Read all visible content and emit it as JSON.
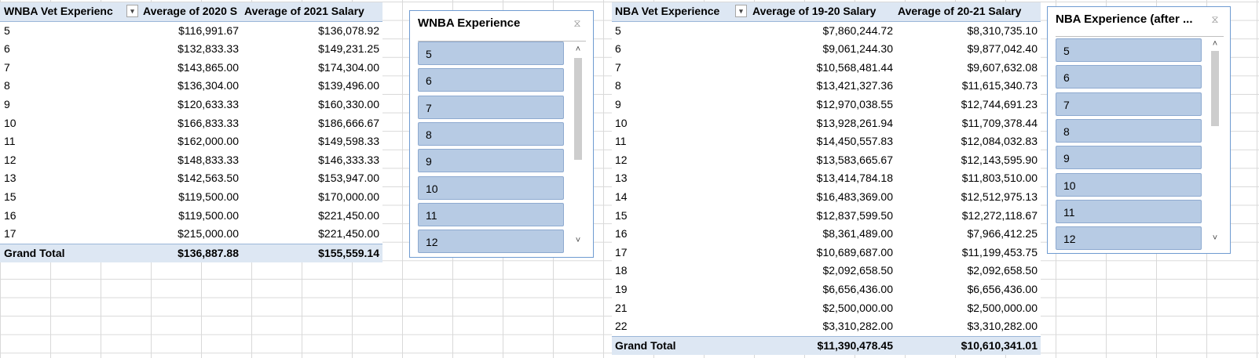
{
  "wnba": {
    "headers": [
      "WNBA Vet Experienc",
      "Average of 2020 S",
      "Average of 2021 Salary"
    ],
    "rows": [
      [
        "5",
        "$116,991.67",
        "$136,078.92"
      ],
      [
        "6",
        "$132,833.33",
        "$149,231.25"
      ],
      [
        "7",
        "$143,865.00",
        "$174,304.00"
      ],
      [
        "8",
        "$136,304.00",
        "$139,496.00"
      ],
      [
        "9",
        "$120,633.33",
        "$160,330.00"
      ],
      [
        "10",
        "$166,833.33",
        "$186,666.67"
      ],
      [
        "11",
        "$162,000.00",
        "$149,598.33"
      ],
      [
        "12",
        "$148,833.33",
        "$146,333.33"
      ],
      [
        "13",
        "$142,563.50",
        "$153,947.00"
      ],
      [
        "15",
        "$119,500.00",
        "$170,000.00"
      ],
      [
        "16",
        "$119,500.00",
        "$221,450.00"
      ],
      [
        "17",
        "$215,000.00",
        "$221,450.00"
      ]
    ],
    "total": [
      "Grand Total",
      "$136,887.88",
      "$155,559.14"
    ]
  },
  "wnba_slicer": {
    "title": "WNBA Experience",
    "items": [
      "5",
      "6",
      "7",
      "8",
      "9",
      "10",
      "11",
      "12"
    ]
  },
  "nba": {
    "headers": [
      "NBA Vet Experience",
      "Average of 19-20 Salary",
      "Average of 20-21 Salary"
    ],
    "rows": [
      [
        "5",
        "$7,860,244.72",
        "$8,310,735.10"
      ],
      [
        "6",
        "$9,061,244.30",
        "$9,877,042.40"
      ],
      [
        "7",
        "$10,568,481.44",
        "$9,607,632.08"
      ],
      [
        "8",
        "$13,421,327.36",
        "$11,615,340.73"
      ],
      [
        "9",
        "$12,970,038.55",
        "$12,744,691.23"
      ],
      [
        "10",
        "$13,928,261.94",
        "$11,709,378.44"
      ],
      [
        "11",
        "$14,450,557.83",
        "$12,084,032.83"
      ],
      [
        "12",
        "$13,583,665.67",
        "$12,143,595.90"
      ],
      [
        "13",
        "$13,414,784.18",
        "$11,803,510.00"
      ],
      [
        "14",
        "$16,483,369.00",
        "$12,512,975.13"
      ],
      [
        "15",
        "$12,837,599.50",
        "$12,272,118.67"
      ],
      [
        "16",
        "$8,361,489.00",
        "$7,966,412.25"
      ],
      [
        "17",
        "$10,689,687.00",
        "$11,199,453.75"
      ],
      [
        "18",
        "$2,092,658.50",
        "$2,092,658.50"
      ],
      [
        "19",
        "$6,656,436.00",
        "$6,656,436.00"
      ],
      [
        "21",
        "$2,500,000.00",
        "$2,500,000.00"
      ],
      [
        "22",
        "$3,310,282.00",
        "$3,310,282.00"
      ]
    ],
    "total": [
      "Grand Total",
      "$11,390,478.45",
      "$10,610,341.01"
    ]
  },
  "nba_slicer": {
    "title": "NBA Experience (after ...",
    "items": [
      "5",
      "6",
      "7",
      "8",
      "9",
      "10",
      "11",
      "12"
    ]
  },
  "icons": {
    "dropdown": "▾",
    "clear_filter": "⧖",
    "scroll_up": "˄",
    "scroll_down": "˅"
  }
}
